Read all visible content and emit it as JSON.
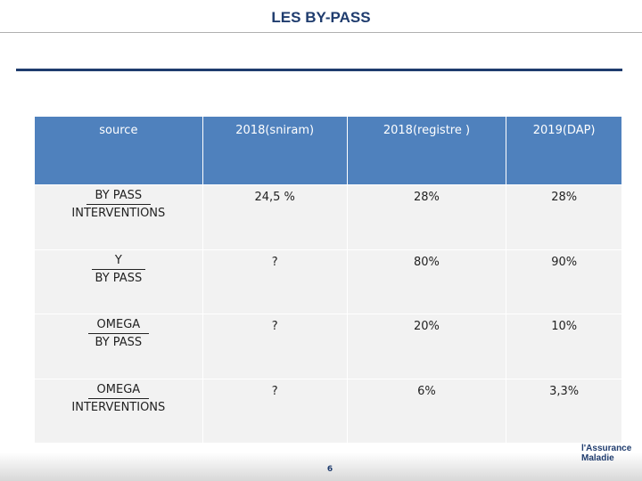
{
  "header": {
    "title": "LES BY-PASS"
  },
  "table": {
    "columns": [
      "source",
      "2018(sniram)",
      "2018(registre )",
      "2019(DAP)"
    ],
    "rows": [
      {
        "label_top": "BY PASS",
        "label_bottom": "INTERVENTIONS",
        "cells": [
          "24,5 %",
          "28%",
          "28%"
        ]
      },
      {
        "label_top": "Y",
        "label_bottom": "BY PASS",
        "cells": [
          "?",
          "80%",
          "90%"
        ]
      },
      {
        "label_top": "OMEGA",
        "label_bottom": "BY PASS",
        "cells": [
          "?",
          "20%",
          "10%"
        ]
      },
      {
        "label_top": "OMEGA",
        "label_bottom": "INTERVENTIONS",
        "cells": [
          "?",
          "6%",
          "3,3%"
        ]
      }
    ]
  },
  "footer": {
    "page_number": "6",
    "logo_top": "l'Assurance",
    "logo_bottom": "Maladie"
  }
}
